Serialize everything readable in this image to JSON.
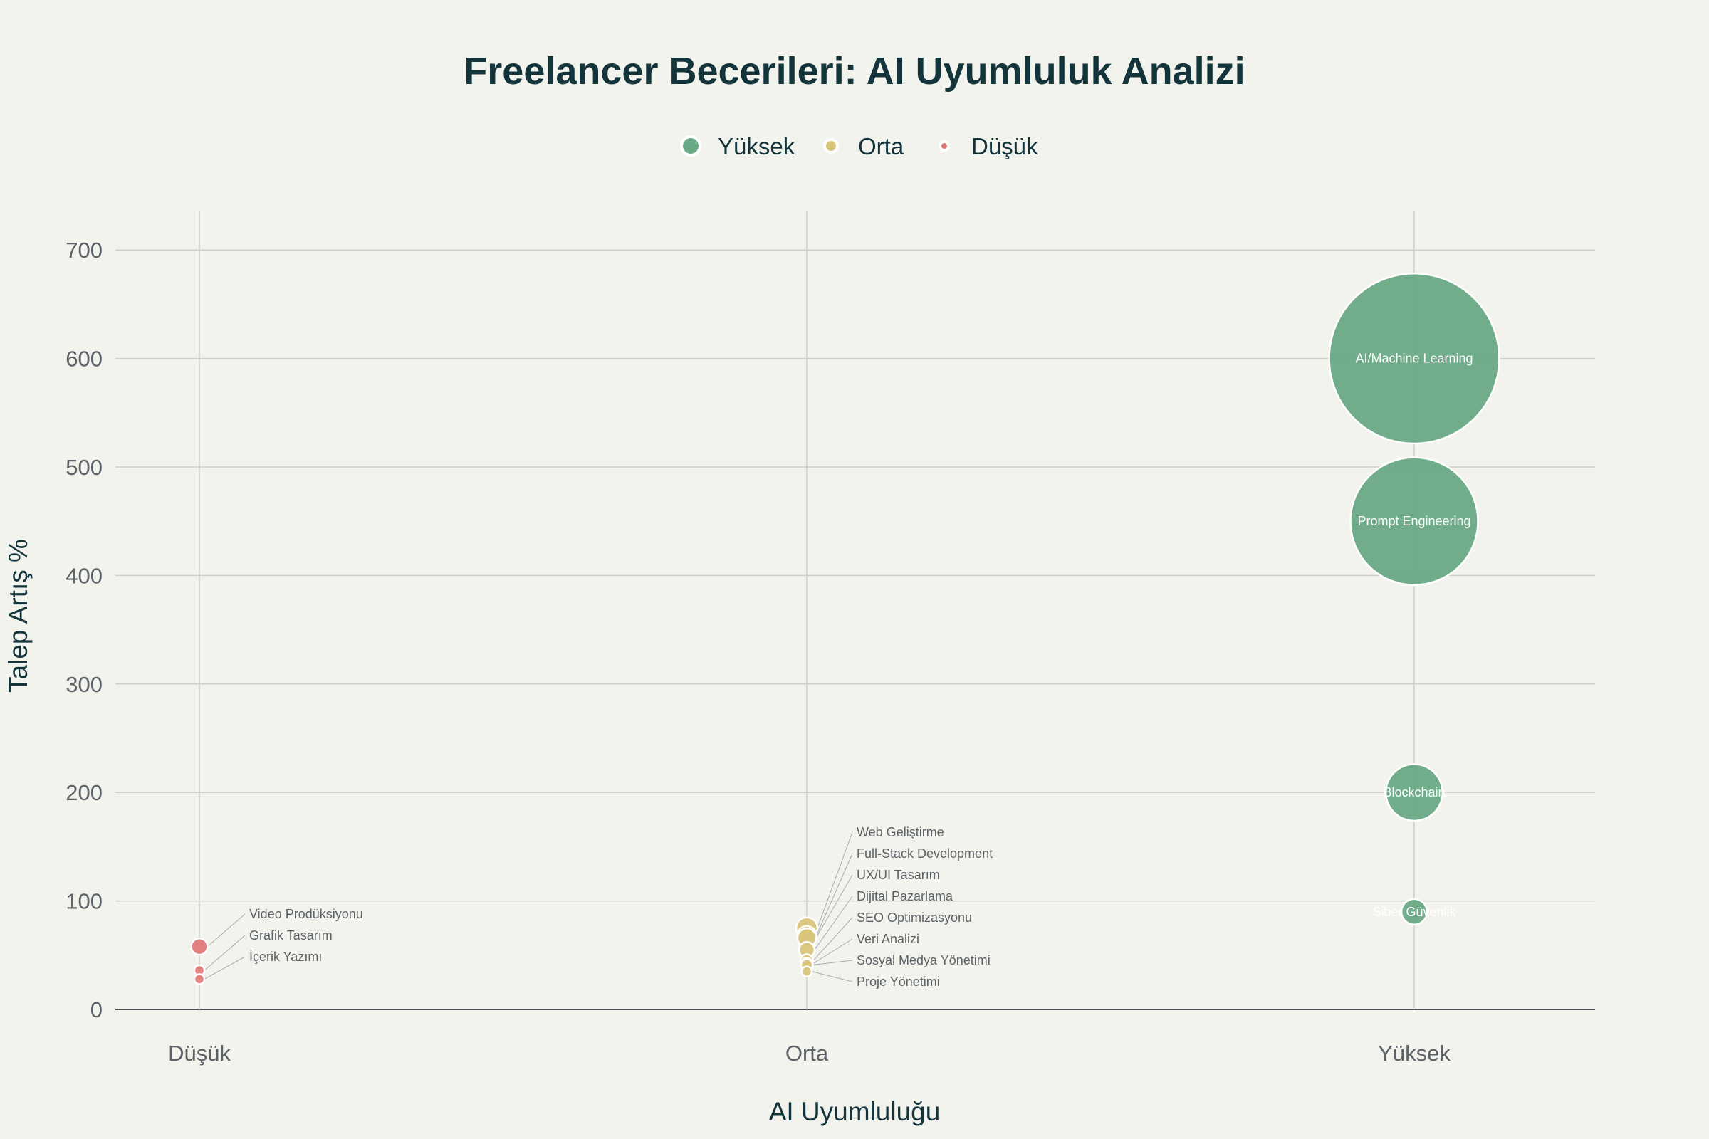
{
  "chart_data": {
    "type": "scatter",
    "title": "Freelancer Becerileri: AI Uyumluluk Analizi",
    "xlabel": "AI Uyumluluğu",
    "ylabel": "Talep Artış %",
    "categories": [
      "Düşük",
      "Orta",
      "Yüksek"
    ],
    "yticks": [
      "0",
      "100",
      "200",
      "300",
      "400",
      "500",
      "600",
      "700"
    ],
    "ylim": [
      -15,
      735
    ],
    "grid": true,
    "legend_placement": "top-center",
    "marker_size_encodes": "Talep Artış %",
    "series": [
      {
        "name": "Yüksek",
        "color": "#69a985",
        "points": [
          {
            "x": "Yüksek",
            "y": 600,
            "label": "AI/Machine Learning"
          },
          {
            "x": "Yüksek",
            "y": 450,
            "label": "Prompt Engineering"
          },
          {
            "x": "Yüksek",
            "y": 200,
            "label": "Blockchain"
          },
          {
            "x": "Yüksek",
            "y": 90,
            "label": "Siber Güvenlik"
          }
        ]
      },
      {
        "name": "Orta",
        "color": "#d9c57a",
        "points": [
          {
            "x": "Orta",
            "y": 75,
            "label": "Web Geliştirme"
          },
          {
            "x": "Orta",
            "y": 68,
            "label": "Full-Stack Development"
          },
          {
            "x": "Orta",
            "y": 66,
            "label": "UX/UI Tasarım"
          },
          {
            "x": "Orta",
            "y": 55,
            "label": "Dijital Pazarlama"
          },
          {
            "x": "Orta",
            "y": 45,
            "label": "SEO Optimizasyonu"
          },
          {
            "x": "Orta",
            "y": 42,
            "label": "Veri Analizi"
          },
          {
            "x": "Orta",
            "y": 41,
            "label": "Sosyal Medya Yönetimi"
          },
          {
            "x": "Orta",
            "y": 35,
            "label": "Proje Yönetimi"
          }
        ]
      },
      {
        "name": "Düşük",
        "color": "#e07a78",
        "points": [
          {
            "x": "Düşük",
            "y": 58,
            "label": "Video Prodüksiyonu"
          },
          {
            "x": "Düşük",
            "y": 36,
            "label": "Grafik Tasarım"
          },
          {
            "x": "Düşük",
            "y": 28,
            "label": "İçerik Yazımı"
          }
        ]
      }
    ]
  }
}
